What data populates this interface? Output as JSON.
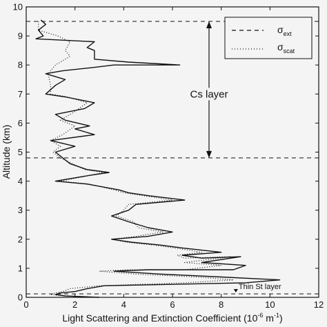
{
  "chart_data": {
    "type": "line",
    "orientation": "vertical-profile",
    "xlabel": "Light Scattering and Extinction Coefficient (10",
    "xlabel_exp": "-6",
    "xlabel_unit": " m",
    "xlabel_unit_exp": "-1",
    "xlabel_close": ")",
    "ylabel": "Altitude (km)",
    "xlim": [
      0,
      12
    ],
    "ylim": [
      0,
      10
    ],
    "xticks": [
      "0",
      "2",
      "4",
      "6",
      "8",
      "10",
      "12"
    ],
    "yticks": [
      "0",
      "1",
      "2",
      "3",
      "4",
      "5",
      "6",
      "7",
      "8",
      "9",
      "10"
    ],
    "legend": {
      "placement": "top-right",
      "entries": [
        {
          "symbol": "σ",
          "sub": "ext",
          "style": "dashed"
        },
        {
          "symbol": "σ",
          "sub": "scat",
          "style": "dotted"
        }
      ]
    },
    "reference_lines": [
      {
        "altitude": 9.5,
        "style": "dashed"
      },
      {
        "altitude": 4.8,
        "style": "dashed"
      },
      {
        "altitude": 0.12,
        "style": "dashed"
      }
    ],
    "annotations": [
      {
        "text": "Cs layer",
        "span": [
          4.8,
          9.5
        ],
        "x": 7.5,
        "label_altitude": 7.0
      },
      {
        "text": "Thin St layer",
        "x": 8.6,
        "altitude": 0.12
      }
    ],
    "series": [
      {
        "style": "solid",
        "points": [
          [
            0.6,
            9.55
          ],
          [
            0.8,
            9.4
          ],
          [
            0.5,
            9.2
          ],
          [
            0.7,
            9.0
          ],
          [
            0.4,
            8.9
          ],
          [
            2.8,
            8.8
          ],
          [
            2.5,
            8.6
          ],
          [
            2.8,
            8.5
          ],
          [
            2.8,
            8.2
          ],
          [
            4.2,
            8.1
          ],
          [
            6.3,
            8.0
          ],
          [
            3.6,
            8.0
          ],
          [
            2.6,
            7.9
          ],
          [
            1.5,
            7.8
          ],
          [
            0.8,
            7.7
          ],
          [
            1.6,
            7.5
          ],
          [
            1.2,
            7.3
          ],
          [
            0.8,
            7.0
          ],
          [
            1.6,
            6.9
          ],
          [
            2.8,
            6.7
          ],
          [
            2.4,
            6.5
          ],
          [
            1.2,
            6.3
          ],
          [
            1.6,
            6.1
          ],
          [
            2.6,
            5.9
          ],
          [
            2.0,
            5.8
          ],
          [
            2.8,
            5.6
          ],
          [
            1.0,
            5.4
          ],
          [
            2.0,
            5.2
          ],
          [
            1.2,
            5.0
          ],
          [
            1.5,
            4.8
          ],
          [
            1.8,
            4.6
          ],
          [
            2.5,
            4.4
          ],
          [
            3.4,
            4.3
          ],
          [
            2.6,
            4.2
          ],
          [
            1.2,
            4.0
          ],
          [
            2.5,
            3.9
          ],
          [
            3.8,
            3.7
          ],
          [
            4.2,
            3.6
          ],
          [
            5.0,
            3.5
          ],
          [
            6.5,
            3.35
          ],
          [
            4.5,
            3.2
          ],
          [
            4.2,
            3.0
          ],
          [
            3.5,
            2.8
          ],
          [
            4.2,
            2.6
          ],
          [
            5.0,
            2.4
          ],
          [
            6.0,
            2.25
          ],
          [
            5.0,
            2.1
          ],
          [
            3.5,
            2.0
          ],
          [
            4.3,
            1.9
          ],
          [
            5.5,
            1.8
          ],
          [
            6.4,
            1.7
          ],
          [
            8.0,
            1.55
          ],
          [
            6.4,
            1.45
          ],
          [
            7.2,
            1.35
          ],
          [
            8.8,
            1.4
          ],
          [
            7.2,
            1.2
          ],
          [
            9.0,
            1.1
          ],
          [
            8.5,
            0.95
          ],
          [
            5.0,
            0.95
          ],
          [
            3.6,
            0.9
          ],
          [
            5.5,
            0.8
          ],
          [
            8.0,
            0.7
          ],
          [
            10.4,
            0.6
          ],
          [
            9.0,
            0.5
          ],
          [
            3.2,
            0.4
          ],
          [
            2.5,
            0.3
          ],
          [
            2.0,
            0.2
          ],
          [
            1.4,
            0.15
          ],
          [
            1.2,
            0.1
          ],
          [
            1.6,
            0.05
          ],
          [
            3.0,
            0.0
          ]
        ]
      },
      {
        "style": "dotted",
        "points": [
          [
            0.5,
            9.5
          ],
          [
            0.5,
            9.2
          ],
          [
            1.3,
            9.0
          ],
          [
            1.8,
            8.8
          ],
          [
            1.6,
            8.5
          ],
          [
            1.8,
            8.3
          ],
          [
            1.2,
            8.0
          ],
          [
            0.9,
            7.7
          ],
          [
            1.0,
            7.3
          ],
          [
            1.0,
            7.0
          ],
          [
            1.7,
            6.9
          ],
          [
            2.5,
            6.7
          ],
          [
            2.0,
            6.4
          ],
          [
            1.4,
            6.1
          ],
          [
            2.0,
            5.9
          ],
          [
            1.5,
            5.6
          ],
          [
            1.0,
            5.4
          ],
          [
            1.4,
            5.2
          ],
          [
            1.1,
            5.0
          ],
          [
            1.4,
            4.8
          ],
          [
            1.9,
            4.6
          ],
          [
            2.4,
            4.4
          ],
          [
            3.2,
            4.3
          ],
          [
            2.6,
            4.2
          ],
          [
            1.4,
            4.0
          ],
          [
            2.6,
            3.9
          ],
          [
            3.6,
            3.7
          ],
          [
            4.0,
            3.6
          ],
          [
            4.8,
            3.5
          ],
          [
            6.0,
            3.35
          ],
          [
            4.2,
            3.2
          ],
          [
            4.0,
            3.0
          ],
          [
            3.7,
            2.8
          ],
          [
            4.4,
            2.6
          ],
          [
            4.6,
            2.4
          ],
          [
            5.6,
            2.25
          ],
          [
            4.5,
            2.1
          ],
          [
            3.5,
            2.0
          ],
          [
            4.1,
            1.9
          ],
          [
            5.2,
            1.8
          ],
          [
            6.1,
            1.7
          ],
          [
            7.2,
            1.55
          ],
          [
            6.2,
            1.45
          ],
          [
            6.5,
            1.35
          ],
          [
            8.4,
            1.4
          ],
          [
            6.5,
            1.2
          ],
          [
            8.0,
            1.1
          ],
          [
            6.5,
            0.95
          ],
          [
            4.2,
            0.95
          ],
          [
            3.0,
            0.9
          ],
          [
            4.5,
            0.8
          ],
          [
            7.0,
            0.7
          ],
          [
            8.5,
            0.6
          ],
          [
            6.5,
            0.5
          ],
          [
            3.0,
            0.4
          ],
          [
            1.8,
            0.3
          ],
          [
            1.5,
            0.2
          ],
          [
            1.2,
            0.15
          ],
          [
            1.0,
            0.1
          ],
          [
            1.5,
            0.05
          ],
          [
            2.5,
            0.0
          ]
        ]
      }
    ]
  }
}
